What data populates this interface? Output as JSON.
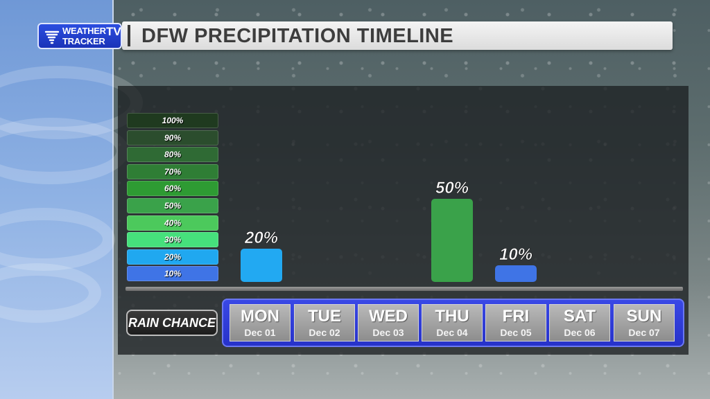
{
  "header": {
    "title": "DFW PRECIPITATION TIMELINE",
    "logo_line1": "WEATHER",
    "logo_line2": "TRACKER",
    "logo_tv": "TV"
  },
  "legend": [
    {
      "label": "100%",
      "color": "#1f3a1f"
    },
    {
      "label": "90%",
      "color": "#2b4d2d"
    },
    {
      "label": "80%",
      "color": "#2f6a34"
    },
    {
      "label": "70%",
      "color": "#2f7e35"
    },
    {
      "label": "60%",
      "color": "#2e9b33"
    },
    {
      "label": "50%",
      "color": "#3aa24a"
    },
    {
      "label": "40%",
      "color": "#4cc95c"
    },
    {
      "label": "30%",
      "color": "#46e07c"
    },
    {
      "label": "20%",
      "color": "#20a8f0"
    },
    {
      "label": "10%",
      "color": "#3f74e6"
    }
  ],
  "rain_label": "RAIN CHANCE",
  "days": [
    {
      "name": "MON",
      "date": "Dec 01"
    },
    {
      "name": "TUE",
      "date": "Dec 02"
    },
    {
      "name": "WED",
      "date": "Dec 03"
    },
    {
      "name": "THU",
      "date": "Dec 04"
    },
    {
      "name": "FRI",
      "date": "Dec 05"
    },
    {
      "name": "SAT",
      "date": "Dec 06"
    },
    {
      "name": "SUN",
      "date": "Dec 07"
    }
  ],
  "chart_data": {
    "type": "bar",
    "title": "DFW PRECIPITATION TIMELINE",
    "categories": [
      "MON",
      "TUE",
      "WED",
      "THU",
      "FRI",
      "SAT",
      "SUN"
    ],
    "values": [
      20,
      null,
      null,
      50,
      10,
      null,
      null
    ],
    "value_labels": [
      "20%",
      "",
      "",
      "50%",
      "10%",
      "",
      ""
    ],
    "bar_colors": [
      "#22a9f2",
      null,
      null,
      "#3aa24a",
      "#3f74e6",
      null,
      null
    ],
    "xlabel": "",
    "ylabel": "RAIN CHANCE",
    "ylim": [
      0,
      100
    ],
    "grid": false,
    "legend_position": "left"
  }
}
